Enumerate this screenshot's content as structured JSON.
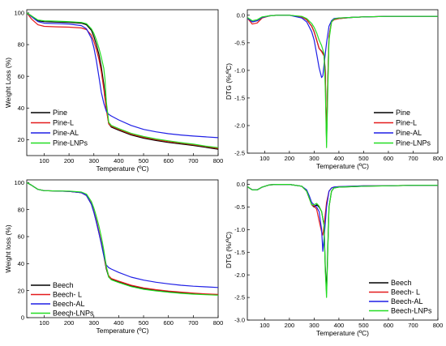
{
  "colors": {
    "black": "#000000",
    "red": "#e41a1c",
    "blue": "#1f1fe6",
    "green": "#22dd22"
  },
  "chart_data": [
    {
      "type": "line",
      "panel": "top-left",
      "xlabel": "Temperature (ºC)",
      "ylabel": "Weight Loss (%)",
      "xlim": [
        30,
        800
      ],
      "ylim": [
        10,
        102
      ],
      "xticks": [
        100,
        200,
        300,
        400,
        500,
        600,
        700,
        800
      ],
      "yticks": [
        20,
        40,
        60,
        80,
        100
      ],
      "legend_position": "bottom-left",
      "series": [
        {
          "name": "Pine",
          "color": "#000000",
          "x": [
            30,
            50,
            75,
            100,
            150,
            200,
            250,
            270,
            290,
            300,
            310,
            320,
            330,
            340,
            350,
            360,
            370,
            400,
            450,
            500,
            550,
            600,
            650,
            700,
            750,
            800
          ],
          "y": [
            100,
            98,
            95,
            94.5,
            94.2,
            94,
            93.5,
            92.5,
            89,
            85,
            80,
            74,
            66,
            55,
            40,
            30,
            28,
            26,
            23,
            21,
            19.5,
            18.3,
            17.3,
            16.4,
            15.2,
            14
          ]
        },
        {
          "name": "Pine-L",
          "color": "#e41a1c",
          "x": [
            30,
            50,
            75,
            100,
            150,
            200,
            250,
            270,
            290,
            300,
            310,
            320,
            330,
            340,
            350,
            360,
            370,
            400,
            450,
            500,
            550,
            600,
            650,
            700,
            750,
            800
          ],
          "y": [
            100,
            96,
            92.5,
            91.5,
            91.2,
            91,
            90.5,
            89.5,
            86,
            82,
            77,
            71,
            63,
            52,
            39,
            30,
            28.5,
            26.5,
            23.5,
            21.5,
            20,
            18.8,
            17.8,
            16.8,
            15.7,
            14.5
          ]
        },
        {
          "name": "Pine-AL",
          "color": "#1f1fe6",
          "x": [
            30,
            50,
            75,
            100,
            150,
            200,
            250,
            270,
            290,
            300,
            310,
            320,
            330,
            340,
            350,
            360,
            370,
            400,
            450,
            500,
            550,
            600,
            650,
            700,
            750,
            800
          ],
          "y": [
            100,
            97.5,
            94.5,
            93.5,
            93.2,
            93,
            92,
            90,
            84,
            78,
            70,
            60,
            50,
            43,
            38,
            36,
            35,
            32.5,
            29,
            26.5,
            25,
            23.8,
            23,
            22.3,
            21.8,
            21.3
          ]
        },
        {
          "name": "Pine-LNPs",
          "color": "#22dd22",
          "x": [
            30,
            50,
            75,
            100,
            150,
            200,
            250,
            270,
            290,
            300,
            310,
            320,
            330,
            340,
            345,
            350,
            360,
            370,
            400,
            450,
            500,
            550,
            600,
            650,
            700,
            750,
            800
          ],
          "y": [
            100,
            98,
            95.5,
            95,
            94.8,
            94.5,
            94,
            93.2,
            90,
            87,
            83,
            78,
            72,
            65,
            58,
            44,
            31,
            29,
            27,
            24,
            22,
            20.5,
            19.3,
            18.2,
            17.2,
            16,
            15
          ]
        }
      ]
    },
    {
      "type": "line",
      "panel": "top-right",
      "xlabel": "Temperature (ºC)",
      "ylabel": "DTG (%/ºC)",
      "xlim": [
        30,
        800
      ],
      "ylim": [
        -2.5,
        0.1
      ],
      "xticks": [
        100,
        200,
        300,
        400,
        500,
        600,
        700,
        800
      ],
      "yticks": [
        0.0,
        -0.5,
        -1.0,
        -1.5,
        -2.0,
        -2.5
      ],
      "legend_position": "bottom-right",
      "series": [
        {
          "name": "Pine",
          "color": "#000000",
          "x": [
            30,
            50,
            70,
            90,
            120,
            150,
            200,
            250,
            270,
            290,
            300,
            310,
            320,
            330,
            340,
            345,
            350,
            355,
            360,
            370,
            380,
            400,
            450,
            500,
            600,
            700,
            800
          ],
          "y": [
            -0.05,
            -0.12,
            -0.1,
            -0.04,
            -0.01,
            0,
            0,
            -0.03,
            -0.08,
            -0.2,
            -0.3,
            -0.45,
            -0.6,
            -0.65,
            -0.72,
            -1.0,
            -2.3,
            -1.2,
            -0.4,
            -0.12,
            -0.08,
            -0.06,
            -0.04,
            -0.03,
            -0.02,
            -0.02,
            -0.02
          ]
        },
        {
          "name": "Pine-L",
          "color": "#e41a1c",
          "x": [
            30,
            50,
            70,
            90,
            120,
            150,
            200,
            250,
            270,
            290,
            300,
            310,
            320,
            330,
            340,
            345,
            350,
            355,
            360,
            370,
            380,
            400,
            450,
            500,
            600,
            700,
            800
          ],
          "y": [
            -0.05,
            -0.16,
            -0.14,
            -0.05,
            -0.01,
            0,
            0,
            -0.03,
            -0.08,
            -0.2,
            -0.3,
            -0.45,
            -0.6,
            -0.66,
            -0.74,
            -1.05,
            -2.25,
            -1.15,
            -0.38,
            -0.12,
            -0.08,
            -0.06,
            -0.04,
            -0.03,
            -0.02,
            -0.02,
            -0.02
          ]
        },
        {
          "name": "Pine-AL",
          "color": "#1f1fe6",
          "x": [
            30,
            50,
            70,
            90,
            120,
            150,
            200,
            250,
            270,
            290,
            300,
            310,
            320,
            330,
            335,
            340,
            350,
            360,
            370,
            380,
            400,
            450,
            500,
            600,
            700,
            800
          ],
          "y": [
            -0.05,
            -0.12,
            -0.1,
            -0.04,
            -0.01,
            0,
            0,
            -0.05,
            -0.12,
            -0.3,
            -0.45,
            -0.7,
            -0.95,
            -1.13,
            -1.1,
            -0.9,
            -0.5,
            -0.2,
            -0.1,
            -0.06,
            -0.05,
            -0.04,
            -0.03,
            -0.02,
            -0.02,
            -0.02
          ]
        },
        {
          "name": "Pine-LNPs",
          "color": "#22dd22",
          "x": [
            30,
            50,
            70,
            90,
            120,
            150,
            200,
            250,
            270,
            290,
            300,
            310,
            320,
            330,
            340,
            345,
            350,
            355,
            360,
            370,
            380,
            400,
            450,
            500,
            600,
            700,
            800
          ],
          "y": [
            -0.04,
            -0.1,
            -0.08,
            -0.03,
            -0.01,
            0,
            0,
            -0.02,
            -0.06,
            -0.15,
            -0.22,
            -0.32,
            -0.45,
            -0.55,
            -0.7,
            -1.3,
            -2.4,
            -1.4,
            -0.45,
            -0.12,
            -0.07,
            -0.05,
            -0.04,
            -0.03,
            -0.02,
            -0.02,
            -0.02
          ]
        }
      ]
    },
    {
      "type": "line",
      "panel": "bottom-left",
      "xlabel": "Temperature (ºC)",
      "ylabel": "Weight loss (%)",
      "xlim": [
        30,
        800
      ],
      "ylim": [
        0,
        102
      ],
      "xticks": [
        100,
        200,
        300,
        400,
        500,
        600,
        700,
        800
      ],
      "yticks": [
        0,
        20,
        40,
        60,
        80,
        100
      ],
      "legend_position": "bottom-left",
      "series": [
        {
          "name": "Beech",
          "color": "#000000",
          "x": [
            30,
            50,
            75,
            100,
            150,
            200,
            250,
            270,
            290,
            300,
            310,
            320,
            330,
            340,
            350,
            360,
            370,
            400,
            450,
            500,
            550,
            600,
            650,
            700,
            750,
            800
          ],
          "y": [
            100,
            98,
            95,
            94,
            93.8,
            93.5,
            92.5,
            90.5,
            84,
            78,
            71,
            63,
            55,
            46,
            36,
            30,
            28.5,
            26.5,
            23.5,
            21.5,
            20.2,
            19.2,
            18.4,
            17.8,
            17.3,
            17
          ]
        },
        {
          "name": "Beech- L",
          "color": "#e41a1c",
          "x": [
            30,
            50,
            75,
            100,
            150,
            200,
            250,
            270,
            290,
            300,
            310,
            320,
            330,
            340,
            350,
            360,
            370,
            400,
            450,
            500,
            550,
            600,
            650,
            700,
            750,
            800
          ],
          "y": [
            100,
            98,
            95,
            94,
            93.8,
            93.5,
            92.5,
            90.5,
            84.5,
            78.5,
            72,
            64,
            56,
            47,
            37,
            31,
            29,
            27,
            24,
            22,
            20.7,
            19.7,
            18.9,
            18.2,
            17.6,
            17.2
          ]
        },
        {
          "name": "Beech-AL",
          "color": "#1f1fe6",
          "x": [
            30,
            50,
            75,
            100,
            150,
            200,
            250,
            270,
            290,
            300,
            310,
            320,
            330,
            340,
            350,
            360,
            370,
            400,
            450,
            500,
            550,
            600,
            650,
            700,
            750,
            800
          ],
          "y": [
            100,
            98,
            95,
            94,
            93.8,
            93.5,
            92.5,
            90.5,
            84,
            78,
            71,
            63,
            55,
            46,
            39,
            37,
            36,
            33.5,
            30,
            27.8,
            26.2,
            25,
            24,
            23.3,
            22.8,
            22.3
          ]
        },
        {
          "name": "Beech-LNPs",
          "color": "#22dd22",
          "x": [
            30,
            50,
            75,
            100,
            150,
            200,
            250,
            270,
            290,
            300,
            310,
            320,
            330,
            340,
            350,
            360,
            370,
            400,
            450,
            500,
            550,
            600,
            650,
            700,
            750,
            800
          ],
          "y": [
            100,
            98,
            95,
            94,
            93.8,
            93.7,
            93,
            91.5,
            86,
            81,
            75,
            68,
            60,
            50,
            38,
            30,
            28,
            26,
            23,
            21,
            19.8,
            18.8,
            18,
            17.4,
            17,
            16.6
          ]
        }
      ]
    },
    {
      "type": "line",
      "panel": "bottom-right",
      "xlabel": "Temperature (ºC)",
      "ylabel": "DTG (%/ºC)",
      "xlim": [
        30,
        800
      ],
      "ylim": [
        -3.0,
        0.1
      ],
      "xticks": [
        100,
        200,
        300,
        400,
        500,
        600,
        700,
        800
      ],
      "yticks": [
        0.0,
        -0.5,
        -1.0,
        -1.5,
        -2.0,
        -2.5,
        -3.0
      ],
      "legend_position": "bottom-right",
      "series": [
        {
          "name": "Beech",
          "color": "#000000",
          "x": [
            30,
            50,
            70,
            90,
            120,
            150,
            200,
            250,
            270,
            280,
            290,
            300,
            310,
            320,
            330,
            340,
            345,
            350,
            355,
            360,
            370,
            380,
            400,
            450,
            500,
            600,
            700,
            800
          ],
          "y": [
            -0.05,
            -0.12,
            -0.12,
            -0.06,
            -0.01,
            0,
            0,
            -0.04,
            -0.15,
            -0.3,
            -0.45,
            -0.5,
            -0.45,
            -0.5,
            -0.6,
            -0.9,
            -1.8,
            -2.4,
            -1.4,
            -0.5,
            -0.15,
            -0.08,
            -0.06,
            -0.05,
            -0.04,
            -0.03,
            -0.02,
            -0.02
          ]
        },
        {
          "name": "Beech- L",
          "color": "#e41a1c",
          "x": [
            30,
            50,
            70,
            90,
            120,
            150,
            200,
            250,
            270,
            280,
            290,
            300,
            310,
            320,
            330,
            335,
            340,
            350,
            360,
            370,
            380,
            400,
            450,
            500,
            600,
            700,
            800
          ],
          "y": [
            -0.05,
            -0.12,
            -0.12,
            -0.06,
            -0.01,
            0,
            0,
            -0.04,
            -0.15,
            -0.3,
            -0.45,
            -0.48,
            -0.55,
            -0.8,
            -1.05,
            -1.12,
            -0.9,
            -0.4,
            -0.15,
            -0.08,
            -0.06,
            -0.05,
            -0.04,
            -0.03,
            -0.03,
            -0.02,
            -0.02
          ]
        },
        {
          "name": "Beech-AL",
          "color": "#1f1fe6",
          "x": [
            30,
            50,
            70,
            90,
            120,
            150,
            200,
            250,
            270,
            280,
            290,
            300,
            310,
            320,
            330,
            335,
            340,
            350,
            360,
            370,
            380,
            400,
            450,
            500,
            600,
            700,
            800
          ],
          "y": [
            -0.05,
            -0.12,
            -0.12,
            -0.06,
            -0.01,
            0,
            0,
            -0.04,
            -0.12,
            -0.25,
            -0.4,
            -0.45,
            -0.5,
            -0.6,
            -1.0,
            -1.48,
            -1.2,
            -0.5,
            -0.15,
            -0.08,
            -0.06,
            -0.05,
            -0.04,
            -0.03,
            -0.03,
            -0.02,
            -0.02
          ]
        },
        {
          "name": "Beech-LNPs",
          "color": "#22dd22",
          "x": [
            30,
            50,
            70,
            90,
            120,
            150,
            200,
            250,
            270,
            280,
            290,
            300,
            310,
            320,
            330,
            340,
            345,
            350,
            355,
            360,
            370,
            380,
            400,
            450,
            500,
            600,
            700,
            800
          ],
          "y": [
            -0.05,
            -0.12,
            -0.12,
            -0.06,
            -0.01,
            0,
            0,
            -0.04,
            -0.15,
            -0.3,
            -0.45,
            -0.45,
            -0.42,
            -0.48,
            -0.6,
            -0.9,
            -1.9,
            -2.5,
            -1.5,
            -0.5,
            -0.15,
            -0.08,
            -0.06,
            -0.05,
            -0.04,
            -0.03,
            -0.02,
            -0.02
          ]
        }
      ]
    }
  ]
}
